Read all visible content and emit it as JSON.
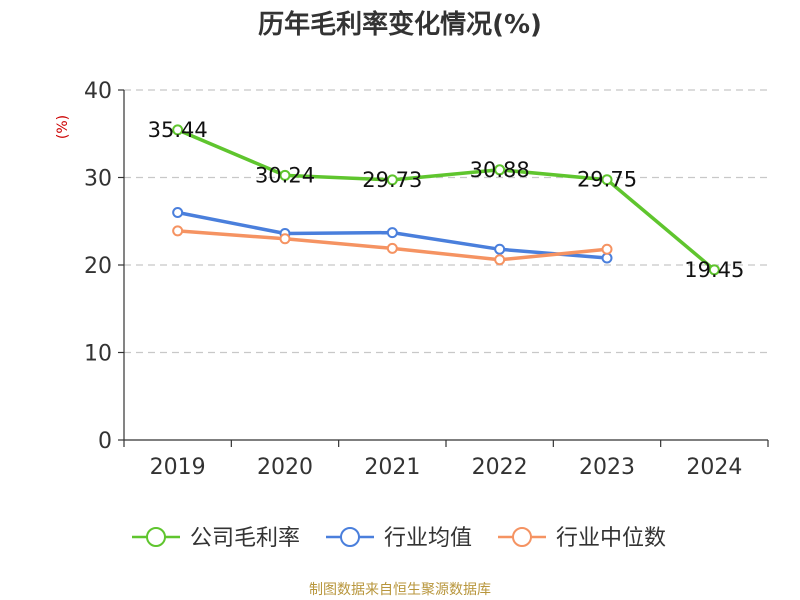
{
  "chart_data": {
    "type": "line",
    "title": "历年毛利率变化情况(%)",
    "unit_label": "(%)",
    "categories": [
      "2019",
      "2020",
      "2021",
      "2022",
      "2023",
      "2024"
    ],
    "ylim": [
      0,
      40
    ],
    "yticks": [
      "0",
      "10",
      "20",
      "30",
      "40"
    ],
    "grid": true,
    "legend_position": "bottom",
    "series": [
      {
        "name": "公司毛利率",
        "color": "#5fc52e",
        "values": [
          35.44,
          30.24,
          29.73,
          30.88,
          29.75,
          19.45
        ],
        "labels": [
          "35.44",
          "30.24",
          "29.73",
          "30.88",
          "29.75",
          "19.45"
        ]
      },
      {
        "name": "行业均值",
        "color": "#4a7fdc",
        "values": [
          26.0,
          23.6,
          23.7,
          21.8,
          20.8,
          null
        ]
      },
      {
        "name": "行业中位数",
        "color": "#f59362",
        "values": [
          23.9,
          23.0,
          21.9,
          20.6,
          21.8,
          null
        ]
      }
    ],
    "source": "制图数据来自恒生聚源数据库"
  }
}
